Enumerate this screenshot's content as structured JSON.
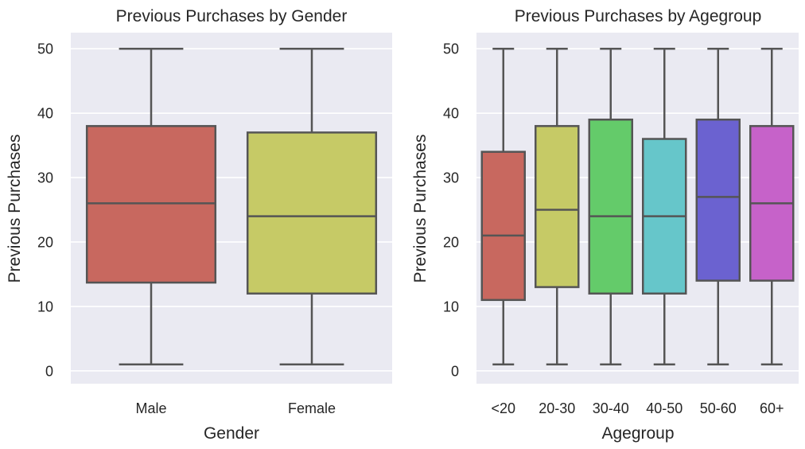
{
  "chart_data": [
    {
      "type": "box",
      "title": "Previous Purchases by Gender",
      "xlabel": "Gender",
      "ylabel": "Previous Purchases",
      "ylim": [
        -2,
        52.5
      ],
      "yticks": [
        0,
        10,
        20,
        30,
        40,
        50
      ],
      "grid": true,
      "categories": [
        "Male",
        "Female"
      ],
      "colors": [
        "#c8685f",
        "#c6ca66"
      ],
      "boxes": [
        {
          "category": "Male",
          "min": 1,
          "q1": 13.7,
          "median": 26,
          "q3": 38,
          "max": 50
        },
        {
          "category": "Female",
          "min": 1,
          "q1": 12,
          "median": 24,
          "q3": 37,
          "max": 50
        }
      ]
    },
    {
      "type": "box",
      "title": "Previous Purchases by Agegroup",
      "xlabel": "Agegroup",
      "ylabel": "Previous Purchases",
      "ylim": [
        -2,
        52.5
      ],
      "yticks": [
        0,
        10,
        20,
        30,
        40,
        50
      ],
      "grid": true,
      "categories": [
        "<20",
        "20-30",
        "30-40",
        "40-50",
        "50-60",
        "60+"
      ],
      "colors": [
        "#c8685f",
        "#c6ca66",
        "#64cb6a",
        "#66c6ca",
        "#6b62d0",
        "#c662c9"
      ],
      "boxes": [
        {
          "category": "<20",
          "min": 1,
          "q1": 11,
          "median": 21,
          "q3": 34,
          "max": 50
        },
        {
          "category": "20-30",
          "min": 1,
          "q1": 13,
          "median": 25,
          "q3": 38,
          "max": 50
        },
        {
          "category": "30-40",
          "min": 1,
          "q1": 12,
          "median": 24,
          "q3": 39,
          "max": 50
        },
        {
          "category": "40-50",
          "min": 1,
          "q1": 12,
          "median": 24,
          "q3": 36,
          "max": 50
        },
        {
          "category": "50-60",
          "min": 1,
          "q1": 14,
          "median": 27,
          "q3": 39,
          "max": 50
        },
        {
          "category": "60+",
          "min": 1,
          "q1": 14,
          "median": 26,
          "q3": 38,
          "max": 50
        }
      ]
    }
  ]
}
